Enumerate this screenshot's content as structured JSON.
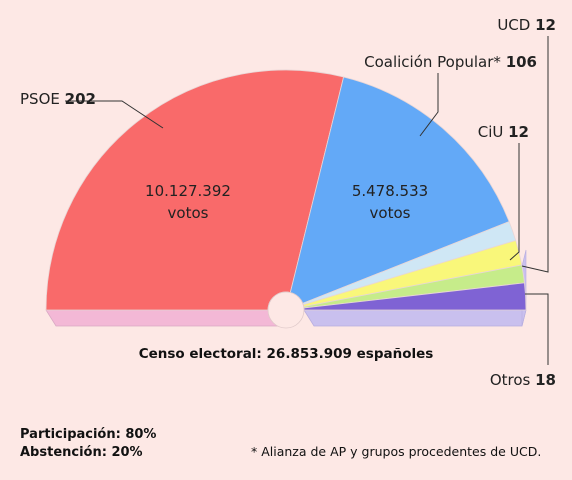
{
  "chart_data": {
    "type": "pie",
    "style": "hemicycle",
    "total_seats": 350,
    "series": [
      {
        "name": "PSOE",
        "value": 202,
        "votes_line1": "10.127.392",
        "votes_line2": "votos",
        "color": "#f96a6a",
        "side_color": "#f3b8d6"
      },
      {
        "name": "Coalición Popular*",
        "value": 106,
        "votes_line1": "5.478.533",
        "votes_line2": "votos",
        "color": "#63a9f7",
        "side_color": "#b9d4f5"
      },
      {
        "name": "UCD",
        "value": 12,
        "color": "#cfe7f5",
        "side_color": "#dde9f3"
      },
      {
        "name": "CiU",
        "value": 12,
        "color": "#f9f77a",
        "side_color": "#ecec9a"
      },
      {
        "name": "Otros",
        "value": 18,
        "color": "#7f63d4",
        "side_color": "#c9c0ee"
      }
    ],
    "extra_band_color": "#c6ec8a",
    "censo": "Censo electoral: 26.853.909 españoles"
  },
  "footer": {
    "participacion": "Participación: 80%",
    "abstencion": "Abstención: 20%",
    "note": "* Alianza de AP y grupos procedentes de UCD."
  }
}
